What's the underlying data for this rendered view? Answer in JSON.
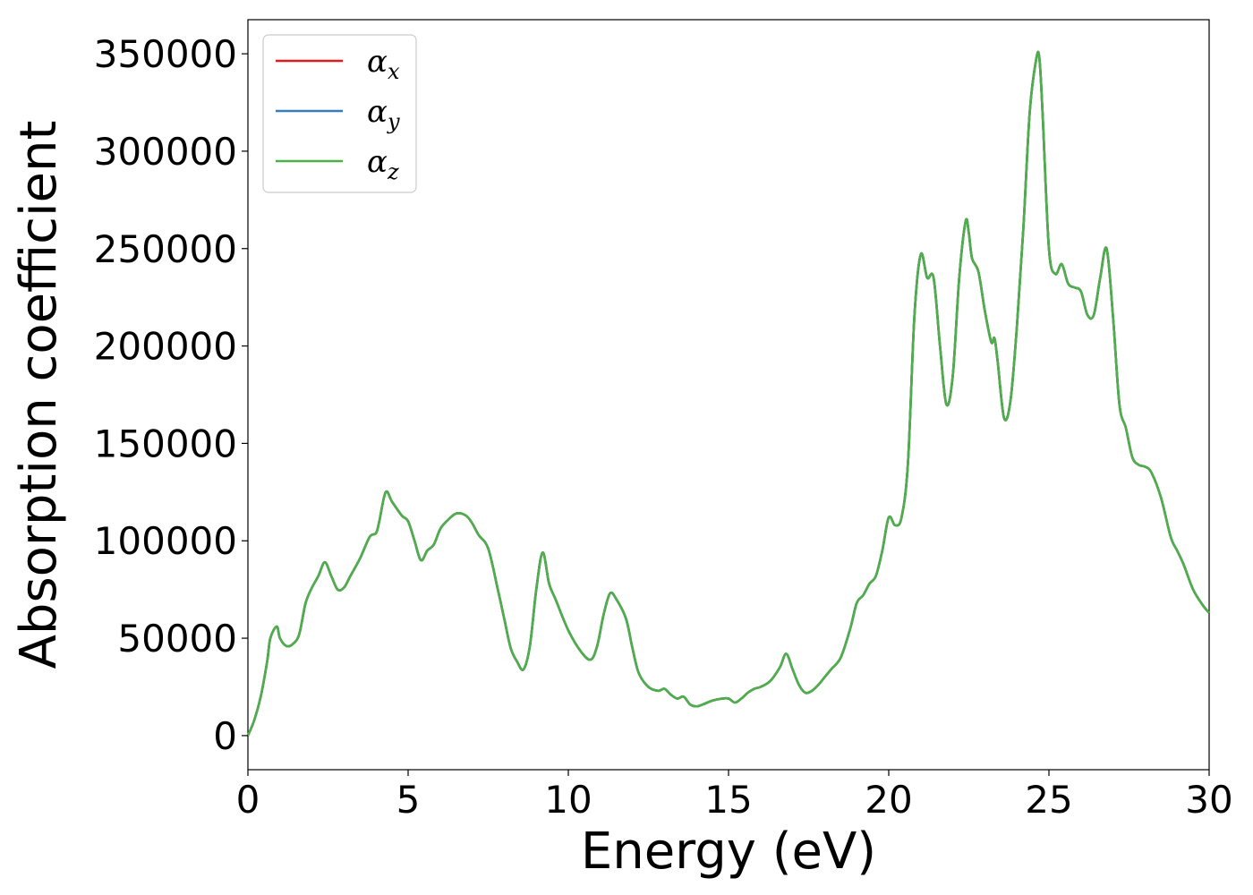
{
  "chart_data": {
    "type": "line",
    "title": "",
    "xlabel": "Energy (eV)",
    "ylabel": "Absorption coefficient",
    "xlim": [
      0,
      30
    ],
    "ylim": [
      -17500,
      367500
    ],
    "xticks": [
      0,
      5,
      10,
      15,
      20,
      25,
      30
    ],
    "xtick_labels": [
      "0",
      "5",
      "10",
      "15",
      "20",
      "25",
      "30"
    ],
    "yticks": [
      0,
      50000,
      100000,
      150000,
      200000,
      250000,
      300000,
      350000
    ],
    "ytick_labels": [
      "0",
      "50000",
      "100000",
      "150000",
      "200000",
      "250000",
      "300000",
      "350000"
    ],
    "grid": false,
    "legend_position": "top-left",
    "x": [
      0,
      0.2,
      0.4,
      0.6,
      0.7,
      0.9,
      1.0,
      1.2,
      1.4,
      1.6,
      1.8,
      2.0,
      2.2,
      2.4,
      2.6,
      2.8,
      3.0,
      3.2,
      3.5,
      3.8,
      4.0,
      4.1,
      4.3,
      4.5,
      4.8,
      5.0,
      5.2,
      5.4,
      5.6,
      5.8,
      6.0,
      6.2,
      6.5,
      6.8,
      7.0,
      7.2,
      7.5,
      7.8,
      8.0,
      8.2,
      8.4,
      8.6,
      8.8,
      9.0,
      9.2,
      9.4,
      9.6,
      10.0,
      10.4,
      10.7,
      10.9,
      11.1,
      11.3,
      11.5,
      11.8,
      12.0,
      12.2,
      12.5,
      12.8,
      13.0,
      13.2,
      13.4,
      13.6,
      13.8,
      14.0,
      14.2,
      14.5,
      14.8,
      15.0,
      15.2,
      15.4,
      15.6,
      15.8,
      16.0,
      16.3,
      16.6,
      16.8,
      17.0,
      17.2,
      17.4,
      17.6,
      17.8,
      18.0,
      18.2,
      18.5,
      18.8,
      19.0,
      19.2,
      19.4,
      19.6,
      19.8,
      20.0,
      20.2,
      20.4,
      20.6,
      20.8,
      21.0,
      21.2,
      21.4,
      21.6,
      21.8,
      22.0,
      22.2,
      22.4,
      22.5,
      22.6,
      22.8,
      23.0,
      23.2,
      23.3,
      23.4,
      23.6,
      23.8,
      24.0,
      24.2,
      24.4,
      24.6,
      24.7,
      24.8,
      25.0,
      25.2,
      25.4,
      25.6,
      25.8,
      26.0,
      26.2,
      26.4,
      26.6,
      26.8,
      27.0,
      27.2,
      27.4,
      27.6,
      27.8,
      28.0,
      28.2,
      28.5,
      28.8,
      29.0,
      29.2,
      29.5,
      29.8,
      30.0
    ],
    "series": [
      {
        "name": "αx",
        "color": "#e41a1c",
        "values": [
          0,
          8000,
          20000,
          38000,
          50000,
          56000,
          50000,
          46000,
          47000,
          52000,
          68000,
          76000,
          82000,
          89000,
          82000,
          75000,
          76000,
          82000,
          91000,
          102000,
          104000,
          110000,
          125000,
          120000,
          113000,
          110000,
          100000,
          90000,
          95000,
          98000,
          106000,
          110000,
          114000,
          113000,
          109000,
          103000,
          96000,
          75000,
          60000,
          45000,
          38000,
          34000,
          46000,
          75000,
          94000,
          78000,
          70000,
          54000,
          43000,
          39000,
          46000,
          62000,
          73000,
          70000,
          60000,
          45000,
          32000,
          25000,
          23000,
          24000,
          21000,
          19000,
          20000,
          16000,
          15000,
          16000,
          18000,
          19000,
          19000,
          17000,
          19000,
          22000,
          24000,
          25000,
          28000,
          35000,
          42000,
          34000,
          26000,
          22000,
          23000,
          26000,
          30000,
          34000,
          40000,
          55000,
          68000,
          72000,
          78000,
          82000,
          95000,
          112000,
          108000,
          112000,
          140000,
          215000,
          247000,
          235000,
          235000,
          200000,
          170000,
          185000,
          235000,
          264000,
          258000,
          245000,
          238000,
          218000,
          202000,
          204000,
          192000,
          163000,
          172000,
          210000,
          260000,
          320000,
          347000,
          348000,
          320000,
          250000,
          237000,
          242000,
          232000,
          230000,
          228000,
          216000,
          216000,
          235000,
          250000,
          215000,
          170000,
          158000,
          143000,
          139000,
          138000,
          135000,
          122000,
          102000,
          95000,
          88000,
          75000,
          67000,
          63000
        ]
      },
      {
        "name": "αy",
        "color": "#377eb8",
        "values": [
          0,
          8000,
          20000,
          38000,
          50000,
          56000,
          50000,
          46000,
          47000,
          52000,
          68000,
          76000,
          82000,
          89000,
          82000,
          75000,
          76000,
          82000,
          91000,
          102000,
          104000,
          110000,
          125000,
          120000,
          113000,
          110000,
          100000,
          90000,
          95000,
          98000,
          106000,
          110000,
          114000,
          113000,
          109000,
          103000,
          96000,
          75000,
          60000,
          45000,
          38000,
          34000,
          46000,
          75000,
          94000,
          78000,
          70000,
          54000,
          43000,
          39000,
          46000,
          62000,
          73000,
          70000,
          60000,
          45000,
          32000,
          25000,
          23000,
          24000,
          21000,
          19000,
          20000,
          16000,
          15000,
          16000,
          18000,
          19000,
          19000,
          17000,
          19000,
          22000,
          24000,
          25000,
          28000,
          35000,
          42000,
          34000,
          26000,
          22000,
          23000,
          26000,
          30000,
          34000,
          40000,
          55000,
          68000,
          72000,
          78000,
          82000,
          95000,
          112000,
          108000,
          112000,
          140000,
          215000,
          247000,
          235000,
          235000,
          200000,
          170000,
          185000,
          235000,
          264000,
          258000,
          245000,
          238000,
          218000,
          202000,
          204000,
          192000,
          163000,
          172000,
          210000,
          260000,
          320000,
          347000,
          348000,
          320000,
          250000,
          237000,
          242000,
          232000,
          230000,
          228000,
          216000,
          216000,
          235000,
          250000,
          215000,
          170000,
          158000,
          143000,
          139000,
          138000,
          135000,
          122000,
          102000,
          95000,
          88000,
          75000,
          67000,
          63000
        ]
      },
      {
        "name": "αz",
        "color": "#4daf4a",
        "values": [
          0,
          8000,
          20000,
          38000,
          50000,
          56000,
          50000,
          46000,
          47000,
          52000,
          68000,
          76000,
          82000,
          89000,
          82000,
          75000,
          76000,
          82000,
          91000,
          102000,
          104000,
          110000,
          125000,
          120000,
          113000,
          110000,
          100000,
          90000,
          95000,
          98000,
          106000,
          110000,
          114000,
          113000,
          109000,
          103000,
          96000,
          75000,
          60000,
          45000,
          38000,
          34000,
          46000,
          75000,
          94000,
          78000,
          70000,
          54000,
          43000,
          39000,
          46000,
          62000,
          73000,
          70000,
          60000,
          45000,
          32000,
          25000,
          23000,
          24000,
          21000,
          19000,
          20000,
          16000,
          15000,
          16000,
          18000,
          19000,
          19000,
          17000,
          19000,
          22000,
          24000,
          25000,
          28000,
          35000,
          42000,
          34000,
          26000,
          22000,
          23000,
          26000,
          30000,
          34000,
          40000,
          55000,
          68000,
          72000,
          78000,
          82000,
          95000,
          112000,
          108000,
          112000,
          140000,
          215000,
          247000,
          235000,
          235000,
          200000,
          170000,
          185000,
          235000,
          264000,
          258000,
          245000,
          238000,
          218000,
          202000,
          204000,
          192000,
          163000,
          172000,
          210000,
          260000,
          320000,
          347000,
          348000,
          320000,
          250000,
          237000,
          242000,
          232000,
          230000,
          228000,
          216000,
          216000,
          235000,
          250000,
          215000,
          170000,
          158000,
          143000,
          139000,
          138000,
          135000,
          122000,
          102000,
          95000,
          88000,
          75000,
          67000,
          63000
        ]
      }
    ],
    "legend": [
      {
        "symbol": "α",
        "sub": "x",
        "color": "#e41a1c"
      },
      {
        "symbol": "α",
        "sub": "y",
        "color": "#377eb8"
      },
      {
        "symbol": "α",
        "sub": "z",
        "color": "#4daf4a"
      }
    ]
  }
}
